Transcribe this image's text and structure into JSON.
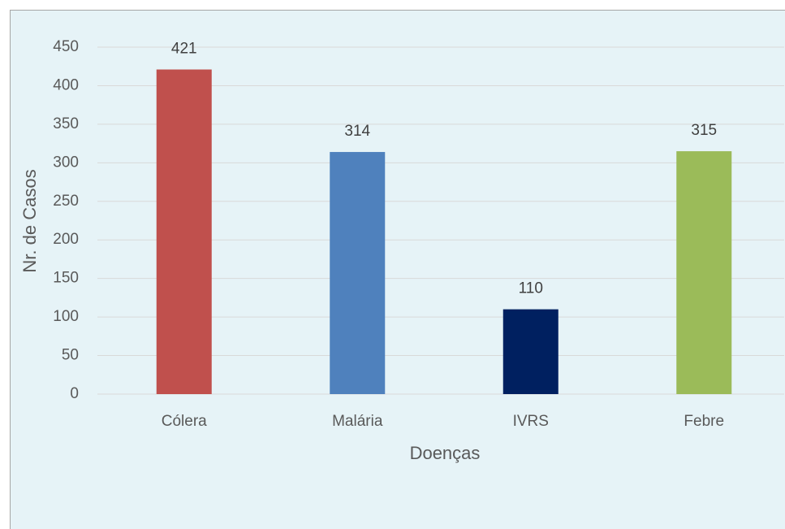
{
  "chart_data": {
    "type": "bar",
    "xlabel": "Doenças",
    "ylabel": "Nr. de Casos",
    "categories": [
      "Cólera",
      "Malária",
      "IVRS",
      "Febre"
    ],
    "values": [
      421,
      314,
      110,
      315
    ],
    "colors": [
      "#c0504d",
      "#4f81bd",
      "#002060",
      "#9bbb59"
    ],
    "ylim": [
      0,
      450
    ],
    "yticks": [
      0,
      50,
      100,
      150,
      200,
      250,
      300,
      350,
      400,
      450
    ],
    "grid": true
  }
}
